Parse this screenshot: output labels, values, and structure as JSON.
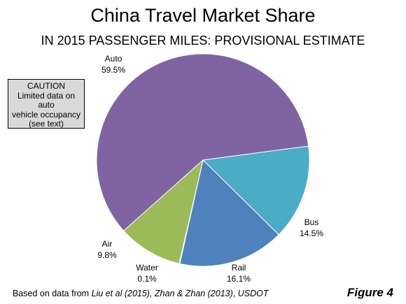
{
  "title": "China Travel Market Share",
  "subtitle": "IN 2015 PASSENGER MILES: PROVISIONAL ESTIMATE",
  "caution": {
    "heading": "CAUTION",
    "lines": [
      "Limited data on auto",
      "vehicle occupancy",
      "(see text)"
    ]
  },
  "source": {
    "prefix": "Based on data from ",
    "italic1": "Liu et al (2015), Zhan & Zhan (2013)",
    "mid": ", ",
    "italic2": "USDOT"
  },
  "figure_label": "Figure 4",
  "chart_data": {
    "type": "pie",
    "title": "China Travel Market Share",
    "subtitle": "IN 2015 PASSENGER MILES: PROVISIONAL ESTIMATE",
    "unit": "%",
    "slices": [
      {
        "name": "Auto",
        "value": 59.5,
        "label": "59.5%",
        "color": "#8064a2"
      },
      {
        "name": "Bus",
        "value": 14.5,
        "label": "14.5%",
        "color": "#4bacc6"
      },
      {
        "name": "Rail",
        "value": 16.1,
        "label": "16.1%",
        "color": "#4f81bd"
      },
      {
        "name": "Water",
        "value": 0.1,
        "label": "0.1%",
        "color": "#f79646"
      },
      {
        "name": "Air",
        "value": 9.8,
        "label": "9.8%",
        "color": "#9bbb59"
      }
    ],
    "start_angle_deg": 0,
    "direction": "clockwise",
    "legend": "none"
  }
}
